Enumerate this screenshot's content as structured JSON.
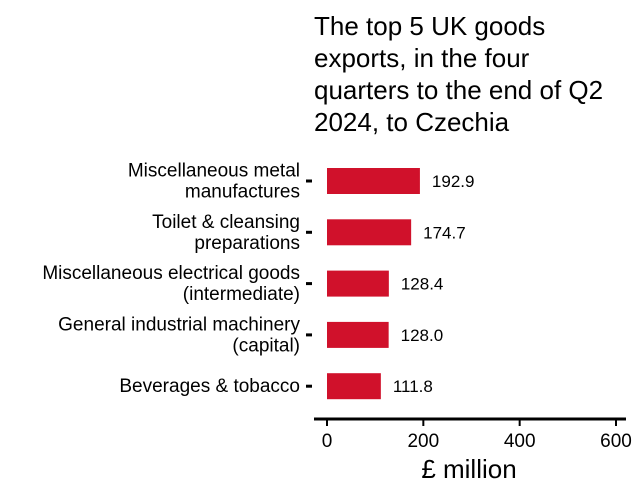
{
  "chart_data": {
    "type": "bar",
    "orientation": "horizontal",
    "title": "The top 5 UK goods exports, in the four quarters to the end of Q2 2024, to Czechia",
    "title_lines": [
      "The top 5 UK goods",
      "exports, in the four",
      "quarters to the end of Q2",
      "2024, to Czechia"
    ],
    "categories": [
      [
        "Miscellaneous metal",
        "manufactures"
      ],
      [
        "Toilet & cleansing",
        "preparations"
      ],
      [
        "Miscellaneous electrical goods",
        "(intermediate)"
      ],
      [
        "General industrial machinery",
        "(capital)"
      ],
      [
        "Beverages & tobacco"
      ]
    ],
    "values": [
      192.9,
      174.7,
      128.4,
      128.0,
      111.8
    ],
    "value_labels": [
      "192.9",
      "174.7",
      "128.4",
      "128.0",
      "111.8"
    ],
    "xlabel": "£ million",
    "ylabel": "",
    "xlim": [
      0,
      600
    ],
    "xticks": [
      "0",
      "200",
      "400",
      "600"
    ],
    "grid": false,
    "bar_color": "#d0112b"
  }
}
